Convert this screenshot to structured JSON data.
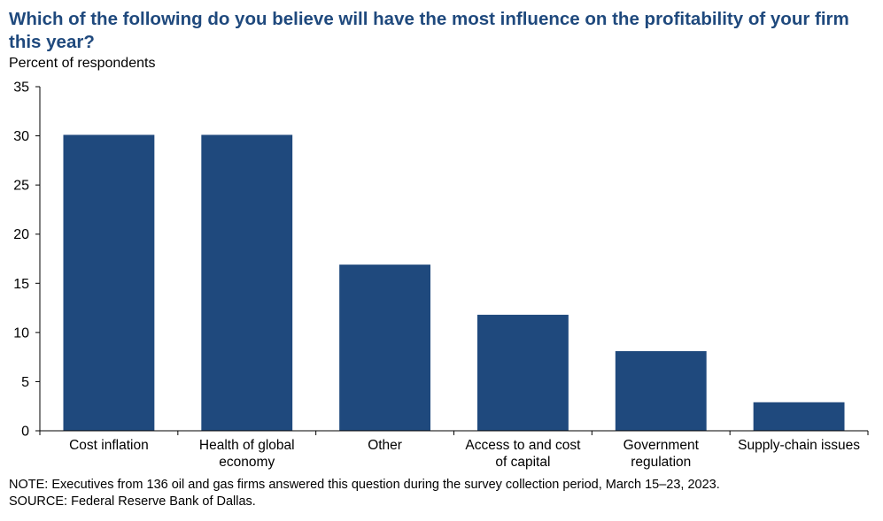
{
  "chart_data": {
    "type": "bar",
    "title": "Which of the following  do you believe will  have the most influence on the profitability  of your firm this year?",
    "ylabel": "Percent of respondents",
    "xlabel": "",
    "categories": [
      [
        "Cost inflation"
      ],
      [
        "Health of global",
        "economy"
      ],
      [
        "Other"
      ],
      [
        "Access to and cost",
        "of capital"
      ],
      [
        "Government",
        "regulation"
      ],
      [
        "Supply-chain issues"
      ]
    ],
    "values": [
      30.1,
      30.1,
      16.9,
      11.8,
      8.1,
      2.9
    ],
    "ylim": [
      0,
      35
    ],
    "yticks": [
      0,
      5,
      10,
      15,
      20,
      25,
      30,
      35
    ],
    "grid": false,
    "bar_color": "#1f497d"
  },
  "notes": {
    "note": "NOTE:  Executives  from 136 oil and gas firms answered this question during the survey collection period, March 15–23, 2023.",
    "source": "SOURCE:  Federal Reserve Bank of Dallas."
  }
}
